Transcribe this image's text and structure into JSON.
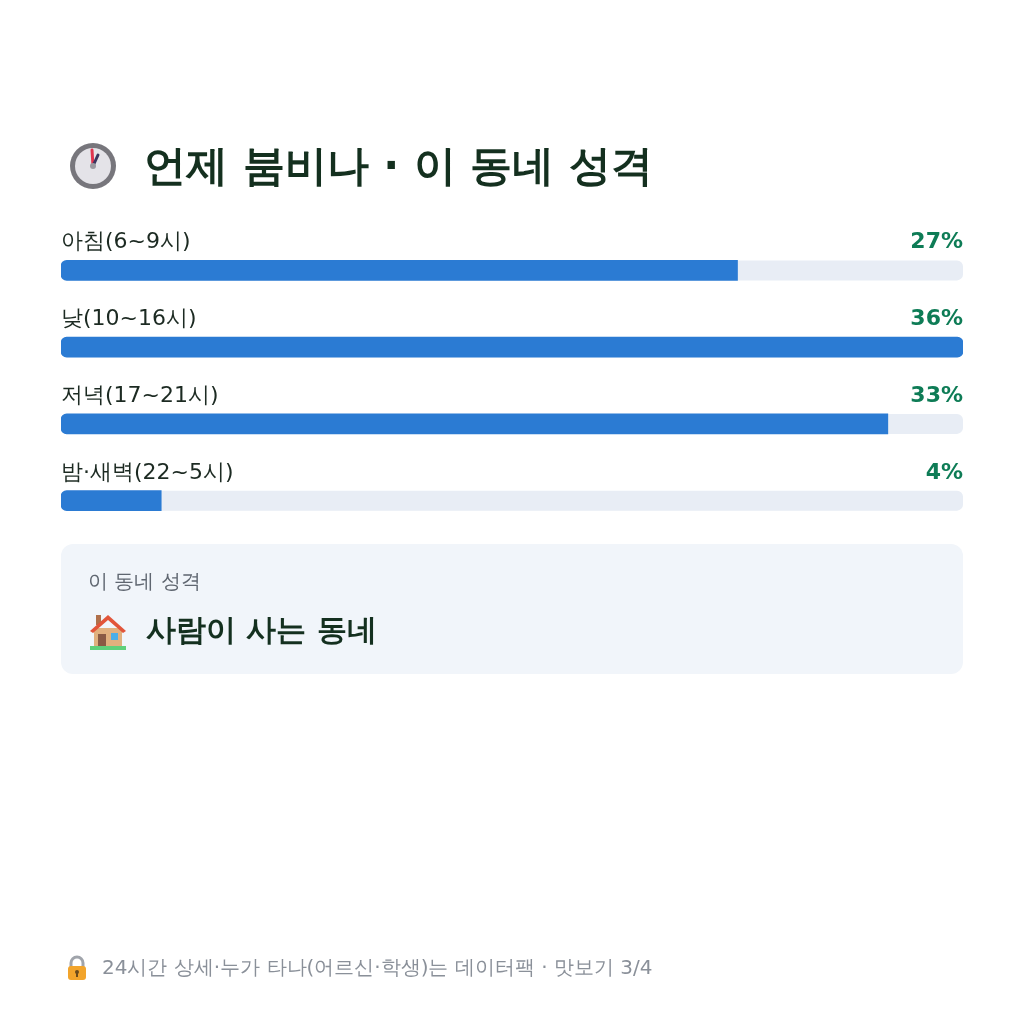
{
  "chart_data": {
    "type": "bar",
    "orientation": "horizontal",
    "title": "언제 붐비나 · 이 동네 성격",
    "categories": [
      "아침(6~9시)",
      "낮(10~16시)",
      "저녁(17~21시)",
      "밤·새벽(22~5시)"
    ],
    "values": [
      27,
      36,
      33,
      4
    ],
    "color": "#2b7bd3",
    "value_labels": [
      "27%",
      "36%",
      "33%",
      "4%"
    ],
    "xlim": [
      0,
      36
    ],
    "tick_labels": "y",
    "grid": false,
    "legend": false,
    "annotations": [
      "이 동네 성격",
      "사람이 사는 동네",
      "24시간 상세·누가 타나(어르신·학생)는 데이터팩 · 맛보기 3/4"
    ]
  }
}
